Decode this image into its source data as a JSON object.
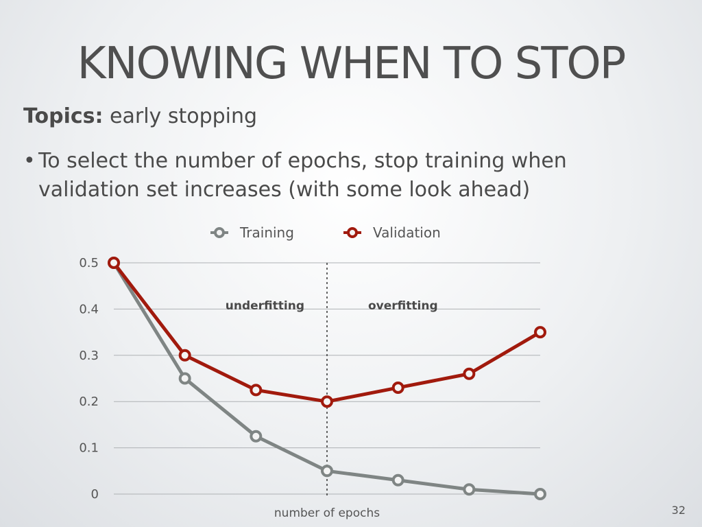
{
  "slide": {
    "title": "KNOWING WHEN TO STOP",
    "topics_label": "Topics:",
    "topics_value": "early stopping",
    "bullet_symbol": "•",
    "bullet": "To select the number of epochs, stop training when validation set increases (with some look ahead)",
    "page_number": "32"
  },
  "chart_data": {
    "type": "line",
    "x": [
      1,
      2,
      3,
      4,
      5,
      6,
      7
    ],
    "series": [
      {
        "name": "Training",
        "color": "#7f8584",
        "values": [
          0.5,
          0.25,
          0.125,
          0.05,
          0.03,
          0.01,
          0.0
        ]
      },
      {
        "name": "Validation",
        "color": "#a11a0d",
        "values": [
          0.5,
          0.3,
          0.225,
          0.2,
          0.23,
          0.26,
          0.35
        ]
      }
    ],
    "xlabel": "number of epochs",
    "ylabel": "",
    "ylim": [
      0,
      0.5
    ],
    "yticks": [
      "0",
      "0.1",
      "0.2",
      "0.3",
      "0.4",
      "0.5"
    ],
    "grid": true,
    "legend": "top-center",
    "annotations": {
      "divider_x": 4,
      "left_label": "underfitting",
      "right_label": "overfitting"
    }
  }
}
